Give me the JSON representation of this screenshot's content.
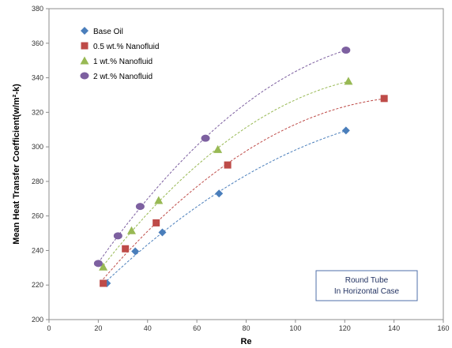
{
  "chart_data": {
    "type": "scatter",
    "xlabel": "Re",
    "ylabel": "Mean Heat Transfer Coefficient(w/m²-k)",
    "xlim": [
      0,
      160
    ],
    "ylim": [
      200,
      380
    ],
    "xticks": [
      0,
      20,
      40,
      60,
      80,
      100,
      120,
      140,
      160
    ],
    "yticks": [
      200,
      220,
      240,
      260,
      280,
      300,
      320,
      340,
      360,
      380
    ],
    "grid": false,
    "legend_position": "top-left",
    "trendline": "polynomial, dashed",
    "annotation": [
      "Round Tube",
      "In Horizontal Case"
    ],
    "series": [
      {
        "name": "Base Oil",
        "marker": "diamond",
        "color": "#4a7ebb",
        "points": [
          [
            23.5,
            221
          ],
          [
            35,
            239.5
          ],
          [
            46,
            250.5
          ],
          [
            69,
            273
          ],
          [
            120.5,
            309.5
          ]
        ]
      },
      {
        "name": "0.5 wt.% Nanofluid",
        "marker": "square",
        "color": "#be4b48",
        "points": [
          [
            22,
            221
          ],
          [
            31,
            241
          ],
          [
            43.5,
            256
          ],
          [
            72.5,
            289.5
          ],
          [
            136,
            328
          ]
        ]
      },
      {
        "name": "1 wt.% Nanofluid",
        "marker": "triangle",
        "color": "#98b954",
        "points": [
          [
            22,
            230.5
          ],
          [
            33.5,
            251.5
          ],
          [
            44.5,
            269
          ],
          [
            68.5,
            298.5
          ],
          [
            121.5,
            338
          ]
        ]
      },
      {
        "name": "2 wt.% Nanofluid",
        "marker": "circle",
        "color": "#7d60a0",
        "points": [
          [
            20,
            232.5
          ],
          [
            28,
            248.5
          ],
          [
            37,
            265.5
          ],
          [
            63.5,
            305
          ],
          [
            120.5,
            356
          ]
        ]
      }
    ]
  }
}
